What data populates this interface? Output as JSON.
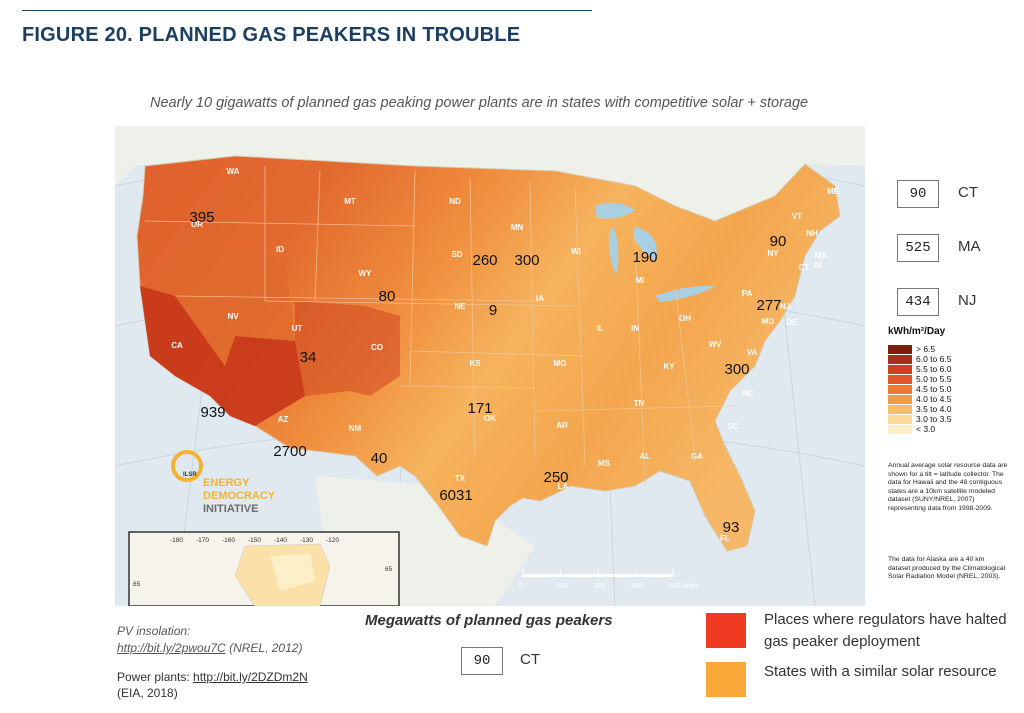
{
  "figure": {
    "title": "FIGURE 20. PLANNED GAS PEAKERS IN TROUBLE",
    "subtitle": "Nearly 10 gigawatts of planned gas peaking power plants are in states with competitive solar + storage"
  },
  "map": {
    "state_abbreviations": [
      "WA",
      "OR",
      "ID",
      "MT",
      "WY",
      "NV",
      "UT",
      "CA",
      "AZ",
      "NM",
      "CO",
      "ND",
      "SD",
      "NE",
      "KS",
      "OK",
      "TX",
      "MN",
      "IA",
      "MO",
      "AR",
      "LA",
      "WI",
      "IL",
      "MS",
      "AL",
      "MI",
      "IN",
      "KY",
      "TN",
      "GA",
      "FL",
      "OH",
      "WV",
      "VA",
      "NC",
      "SC",
      "PA",
      "NY",
      "VT",
      "NH",
      "ME",
      "MA",
      "CT",
      "RI",
      "NJ",
      "DE",
      "MD"
    ],
    "planned_mw": [
      {
        "state": "OR",
        "value": "395"
      },
      {
        "state": "WY",
        "value": "80"
      },
      {
        "state": "UT",
        "value": "34"
      },
      {
        "state": "CA",
        "value": "939"
      },
      {
        "state": "AZ",
        "value": "2700"
      },
      {
        "state": "NM",
        "value": "40"
      },
      {
        "state": "SD",
        "value": "260"
      },
      {
        "state": "MN",
        "value": "300"
      },
      {
        "state": "NE",
        "value": "9"
      },
      {
        "state": "OK",
        "value": "171"
      },
      {
        "state": "TX",
        "value": "6031"
      },
      {
        "state": "LA",
        "value": "250"
      },
      {
        "state": "MI",
        "value": "190"
      },
      {
        "state": "NY",
        "value": "90"
      },
      {
        "state": "PA",
        "value": "277"
      },
      {
        "state": "VA",
        "value": "300"
      },
      {
        "state": "FL",
        "value": "93"
      }
    ],
    "scale_bar": {
      "ticks": [
        "0",
        "150",
        "300",
        "450",
        "600 Miles"
      ]
    },
    "inset_longitudes": [
      "-180",
      "-170",
      "-160",
      "-150",
      "-140",
      "-130",
      "-120"
    ],
    "inset_latitude": "65",
    "logo": {
      "line1": "ENERGY",
      "line2": "DEMOCRACY",
      "line3": "INITIATIVE",
      "brand": "ILSR"
    }
  },
  "side_boxes": [
    {
      "value": "90",
      "state": "CT"
    },
    {
      "value": "525",
      "state": "MA"
    },
    {
      "value": "434",
      "state": "NJ"
    }
  ],
  "legend": {
    "title": "kWh/m²/Day",
    "items": [
      {
        "label": "> 6.5",
        "color": "#7a1e0e"
      },
      {
        "label": "6.0 to 6.5",
        "color": "#a8301a"
      },
      {
        "label": "5.5 to 6.0",
        "color": "#cf3f20"
      },
      {
        "label": "5.0 to 5.5",
        "color": "#e0582a"
      },
      {
        "label": "4.5 to 5.0",
        "color": "#ec7a32"
      },
      {
        "label": "4.0 to 4.5",
        "color": "#f39c48"
      },
      {
        "label": "3.5 to 4.0",
        "color": "#f8bd6c"
      },
      {
        "label": "3.0 to 3.5",
        "color": "#fcd999"
      },
      {
        "label": "< 3.0",
        "color": "#fdf0c8"
      }
    ],
    "note1": "Annual average solar resource data are shown for a tilt = latitude collector. The data for Hawaii and the 48 contiguous states are a 10km satellite modeled dataset (SUNY/NREL, 2007) representing data from 1998-2009.",
    "note2": "The data for Alaska are a 40 km dataset produced by the Climatological Solar Radiation Model (NREL, 2003)."
  },
  "sources": {
    "pv_label": "PV insolation:",
    "pv_link": "http://bit.ly/2pwou7C",
    "pv_cite": "(NREL, 2012)",
    "plants_label": "Power plants: ",
    "plants_link": "http://bit.ly/2DZDm2N",
    "plants_cite": "(EIA, 2018)"
  },
  "mw_key": {
    "heading": "Megawatts of planned gas peakers",
    "example_value": "90",
    "example_state": "CT"
  },
  "color_key": [
    {
      "color": "#f03a22",
      "label": "Places where regulators have halted gas peaker deployment"
    },
    {
      "color": "#f9a83a",
      "label": "States with a similar solar resource"
    }
  ]
}
